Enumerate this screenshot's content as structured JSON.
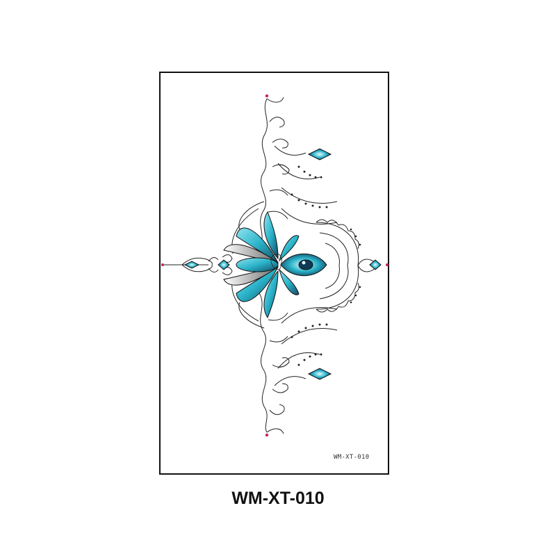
{
  "sheet": {
    "code_small": "WM-XT-010",
    "artwork": "blue lotus filigree tattoo design"
  },
  "caption": {
    "code": "WM-XT-010"
  },
  "colors": {
    "accent": "#2ab3c9",
    "accent_dark": "#123b52",
    "line": "#222222",
    "tip": "#c8245a"
  }
}
